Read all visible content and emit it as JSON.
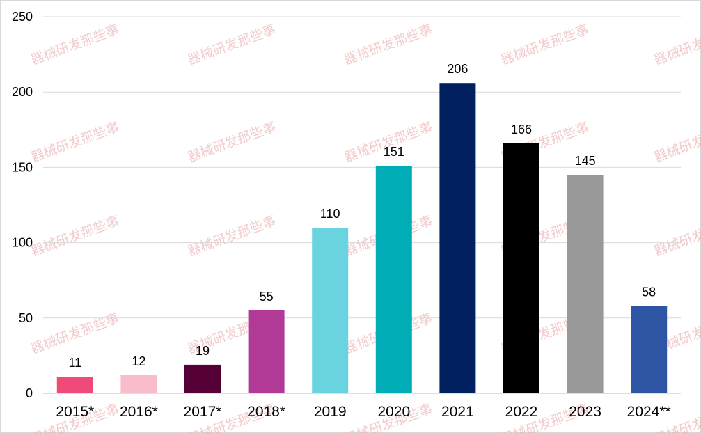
{
  "chart_data": {
    "type": "bar",
    "categories": [
      "2015*",
      "2016*",
      "2017*",
      "2018*",
      "2019",
      "2020",
      "2021",
      "2022",
      "2023",
      "2024**"
    ],
    "values": [
      11,
      12,
      19,
      55,
      110,
      151,
      206,
      166,
      145,
      58
    ],
    "colors": [
      "#f04a78",
      "#f9bccb",
      "#560038",
      "#b03a96",
      "#69d4e0",
      "#00adb6",
      "#002060",
      "#000000",
      "#999999",
      "#2e54a4"
    ],
    "title": "",
    "xlabel": "",
    "ylabel": "",
    "ylim": [
      0,
      250
    ],
    "yticks": [
      "0",
      "50",
      "100",
      "150",
      "200",
      "250"
    ],
    "grid": true,
    "legend": "none"
  },
  "watermark": "器械研发那些事"
}
